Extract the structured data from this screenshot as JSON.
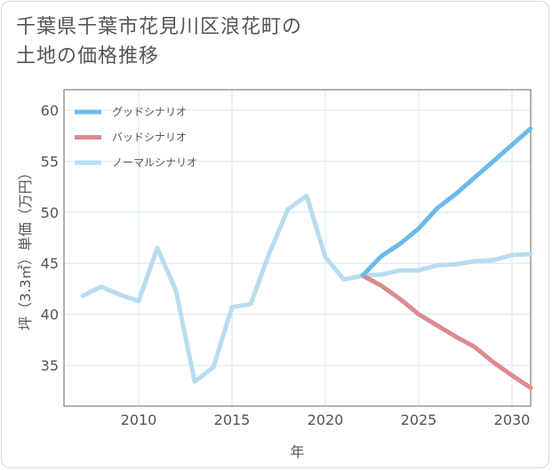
{
  "title": {
    "line1": "千葉県千葉市花見川区浪花町の",
    "line2": "土地の価格推移"
  },
  "chart_data": {
    "type": "line",
    "xlabel": "年",
    "ylabel": "坪（3.3㎡）単価（万円）",
    "xlim": [
      2006,
      2031
    ],
    "ylim": [
      31,
      62
    ],
    "xticks": [
      2010,
      2015,
      2020,
      2025,
      2030
    ],
    "yticks": [
      35,
      40,
      45,
      50,
      55,
      60
    ],
    "grid": true,
    "legend_position": "top-left",
    "series": [
      {
        "name": "グッドシナリオ",
        "color": "#6cb9ea",
        "x": [
          2022,
          2023,
          2024,
          2025,
          2026,
          2027,
          2028,
          2029,
          2030,
          2031
        ],
        "values": [
          43.8,
          45.7,
          46.9,
          48.4,
          50.4,
          51.8,
          53.4,
          55.0,
          56.6,
          58.2
        ]
      },
      {
        "name": "バッドシナリオ",
        "color": "#dd8a90",
        "x": [
          2022,
          2023,
          2024,
          2025,
          2026,
          2027,
          2028,
          2029,
          2030,
          2031
        ],
        "values": [
          43.8,
          42.8,
          41.5,
          40.0,
          38.9,
          37.8,
          36.8,
          35.3,
          34.0,
          32.8
        ]
      },
      {
        "name": "ノーマルシナリオ",
        "color": "#b9dcef",
        "x": [
          2007,
          2008,
          2009,
          2010,
          2011,
          2012,
          2013,
          2014,
          2015,
          2016,
          2017,
          2018,
          2019,
          2020,
          2021,
          2022,
          2023,
          2024,
          2025,
          2026,
          2027,
          2028,
          2029,
          2030,
          2031
        ],
        "values": [
          41.8,
          42.7,
          41.9,
          41.3,
          46.5,
          42.3,
          33.4,
          34.8,
          40.7,
          41.0,
          46.0,
          50.3,
          51.6,
          45.6,
          43.4,
          43.8,
          43.9,
          44.3,
          44.3,
          44.8,
          44.9,
          45.2,
          45.3,
          45.8,
          45.9
        ]
      }
    ]
  }
}
